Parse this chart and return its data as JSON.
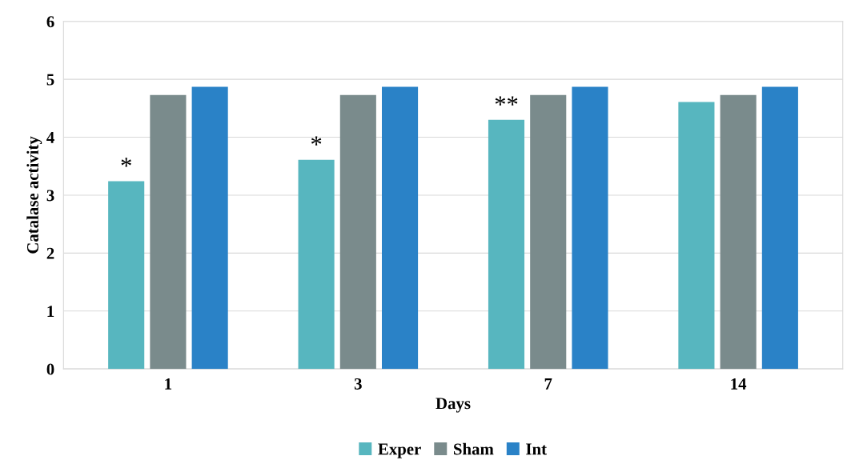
{
  "chart_data": {
    "type": "bar",
    "xlabel": "Days",
    "ylabel": "Catalase activity",
    "categories": [
      "1",
      "3",
      "7",
      "14"
    ],
    "series": [
      {
        "name": "Exper",
        "color": "#57b6bf",
        "values": [
          3.24,
          3.61,
          4.3,
          4.61
        ]
      },
      {
        "name": "Sham",
        "color": "#7a8b8c",
        "values": [
          4.73,
          4.73,
          4.73,
          4.73
        ]
      },
      {
        "name": "Int",
        "color": "#2a82c7",
        "values": [
          4.87,
          4.87,
          4.87,
          4.87
        ]
      }
    ],
    "annotations": [
      "*",
      "*",
      "**"
    ],
    "ylim": [
      0,
      6
    ],
    "yticks": [
      0,
      1,
      2,
      3,
      4,
      5,
      6
    ],
    "grid": "y",
    "legend": "bottom"
  }
}
